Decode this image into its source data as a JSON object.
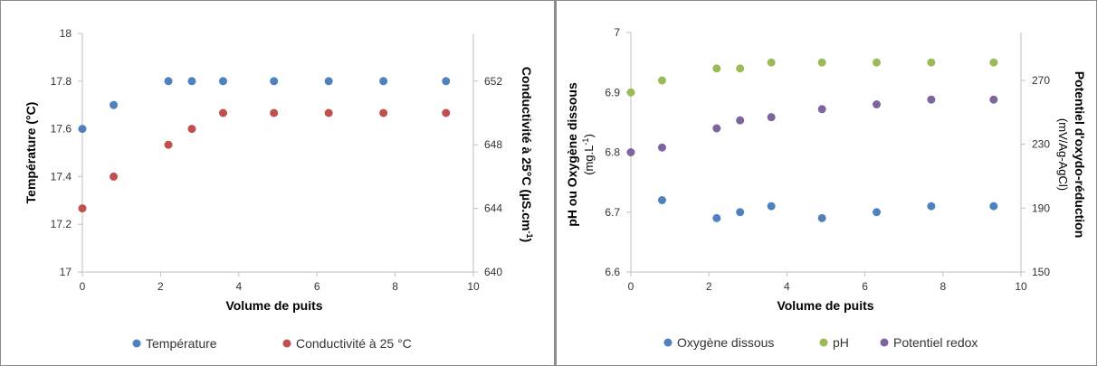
{
  "chart_data": [
    {
      "type": "scatter",
      "xlabel": "Volume de puits",
      "ylabel": "Température (°C)",
      "y2label": "Conductivité à 25°C (µS.cm",
      "y2label_sup": "-1",
      "y2label_end": ")",
      "xlim": [
        0,
        10
      ],
      "ylim": [
        17,
        18
      ],
      "y2lim": [
        640,
        655
      ],
      "xticks": [
        "0",
        "2",
        "4",
        "6",
        "8",
        "10"
      ],
      "yticks": [
        "17",
        "17.2",
        "17.4",
        "17.6",
        "17.8",
        "18"
      ],
      "y2ticks": [
        "640",
        "644",
        "648",
        "652"
      ],
      "grid": false,
      "legend_position": "bottom",
      "series": [
        {
          "name": "Température",
          "axis": "left",
          "color": "#4f81bd",
          "x": [
            0,
            0.8,
            2.2,
            2.8,
            3.6,
            4.9,
            6.3,
            7.7,
            9.3
          ],
          "y": [
            17.6,
            17.7,
            17.8,
            17.8,
            17.8,
            17.8,
            17.8,
            17.8,
            17.8
          ]
        },
        {
          "name": "Conductivité à 25 °C",
          "axis": "right",
          "color": "#c0504d",
          "x": [
            0,
            0.8,
            2.2,
            2.8,
            3.6,
            4.9,
            6.3,
            7.7,
            9.3
          ],
          "y": [
            644,
            646,
            648,
            649,
            650,
            650,
            650,
            650,
            650
          ]
        }
      ]
    },
    {
      "type": "scatter",
      "xlabel": "Volume de puits",
      "ylabel": "pH ou Oxygène dissous",
      "ylabel2": "(mg.L",
      "ylabel2_sup": "-1",
      "ylabel2_end": ")",
      "y2label": "Potentiel d'oxydo-réduction",
      "y2label2": "(mV/Ag-AgCl)",
      "xlim": [
        0,
        10
      ],
      "ylim": [
        6.6,
        7
      ],
      "y2lim": [
        150,
        300
      ],
      "xticks": [
        "0",
        "2",
        "4",
        "6",
        "8",
        "10"
      ],
      "yticks": [
        "6.6",
        "6.7",
        "6.8",
        "6.9",
        "7"
      ],
      "y2ticks": [
        "150",
        "190",
        "230",
        "270"
      ],
      "grid": false,
      "legend_position": "bottom",
      "series": [
        {
          "name": "Oxygène dissous",
          "axis": "left",
          "color": "#4f81bd",
          "x": [
            0.8,
            2.2,
            2.8,
            3.6,
            4.9,
            6.3,
            7.7,
            9.3
          ],
          "y": [
            6.72,
            6.69,
            6.7,
            6.71,
            6.69,
            6.7,
            6.71,
            6.71
          ]
        },
        {
          "name": "pH",
          "axis": "left",
          "color": "#9bbb59",
          "x": [
            0,
            0.8,
            2.2,
            2.8,
            3.6,
            4.9,
            6.3,
            7.7,
            9.3
          ],
          "y": [
            6.9,
            6.92,
            6.94,
            6.94,
            6.95,
            6.95,
            6.95,
            6.95,
            6.95
          ]
        },
        {
          "name": "Potentiel redox",
          "axis": "right",
          "color": "#8064a2",
          "x": [
            0,
            0.8,
            2.2,
            2.8,
            3.6,
            4.9,
            6.3,
            7.7,
            9.3
          ],
          "y": [
            225,
            228,
            240,
            245,
            247,
            252,
            255,
            258,
            258
          ]
        }
      ]
    }
  ]
}
